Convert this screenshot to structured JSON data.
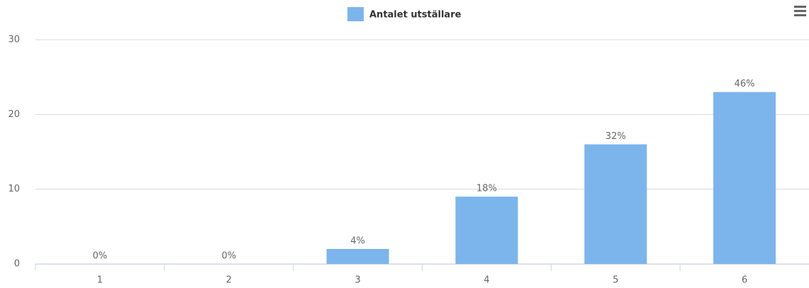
{
  "chart_data": {
    "type": "bar",
    "categories": [
      "1",
      "2",
      "3",
      "4",
      "5",
      "6"
    ],
    "series": [
      {
        "name": "Antalet utställare",
        "color": "#7cb5ec",
        "values": [
          0,
          0,
          2,
          9,
          16,
          23
        ],
        "value_labels": [
          "0%",
          "0%",
          "4%",
          "18%",
          "32%",
          "46%"
        ]
      }
    ],
    "ylim": [
      0,
      30
    ],
    "yticks": [
      0,
      10,
      20,
      30
    ],
    "grid": true,
    "legend": "top"
  }
}
